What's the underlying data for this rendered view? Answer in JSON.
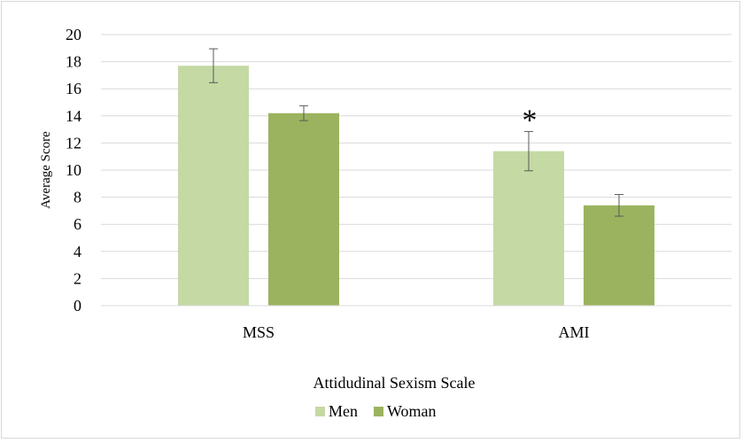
{
  "chart_data": {
    "type": "bar",
    "categories": [
      "MSS",
      "AMI"
    ],
    "series": [
      {
        "name": "Men",
        "values": [
          17.7,
          11.4
        ],
        "errors": [
          1.25,
          1.45
        ],
        "color": "#c5d9a4"
      },
      {
        "name": "Woman",
        "values": [
          14.2,
          7.4
        ],
        "errors": [
          0.55,
          0.8
        ],
        "color": "#9bb35e"
      }
    ],
    "title": "",
    "xlabel": "Attidudinal Sexism Scale",
    "ylabel": "Average Score",
    "ylim": [
      0,
      20
    ],
    "yticks": [
      "0",
      "2",
      "4",
      "6",
      "8",
      "10",
      "12",
      "14",
      "16",
      "18",
      "20"
    ],
    "grid": true,
    "gridColor": "#d9d9d9",
    "legend": "bottom",
    "annotations": [
      {
        "text": "*",
        "category": "AMI",
        "series": "Men"
      }
    ]
  }
}
